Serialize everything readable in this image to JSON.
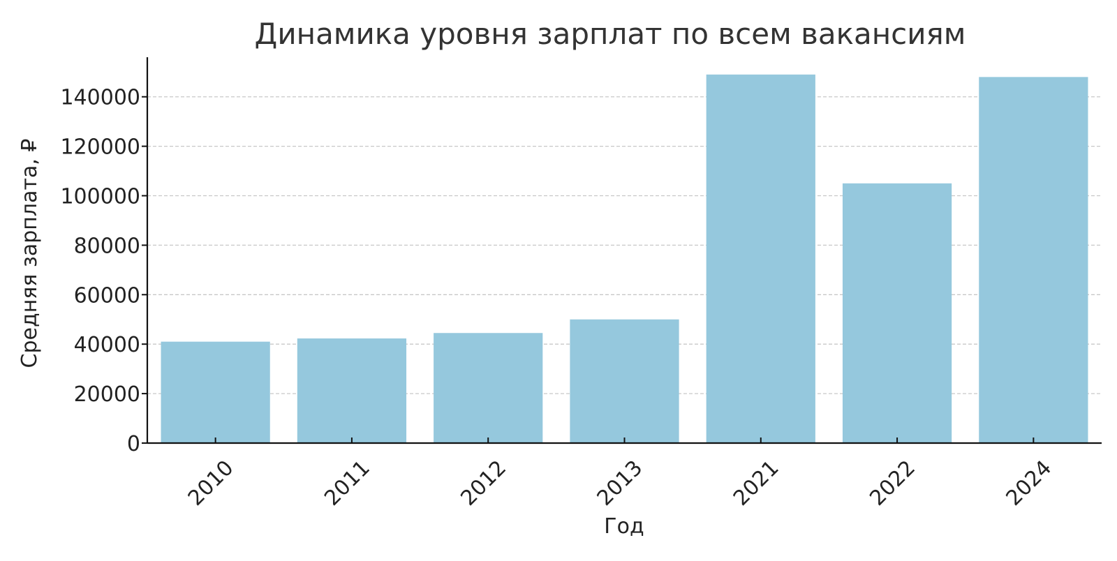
{
  "chart_data": {
    "type": "bar",
    "title": "Динамика уровня зарплат по всем вакансиям",
    "xlabel": "Год",
    "ylabel": "Средняя зарплата, ₽",
    "categories": [
      "2010",
      "2011",
      "2012",
      "2013",
      "2021",
      "2022",
      "2024"
    ],
    "values": [
      41000,
      42300,
      44500,
      50000,
      149000,
      105000,
      148000
    ],
    "ylim": [
      0,
      156000
    ],
    "yticks": [
      0,
      20000,
      40000,
      60000,
      80000,
      100000,
      120000,
      140000
    ],
    "ytick_labels": [
      "0",
      "20000",
      "40000",
      "60000",
      "80000",
      "100000",
      "120000",
      "140000"
    ],
    "grid": true,
    "xtick_rotation": 45,
    "bar_color": "#95c8dd"
  }
}
